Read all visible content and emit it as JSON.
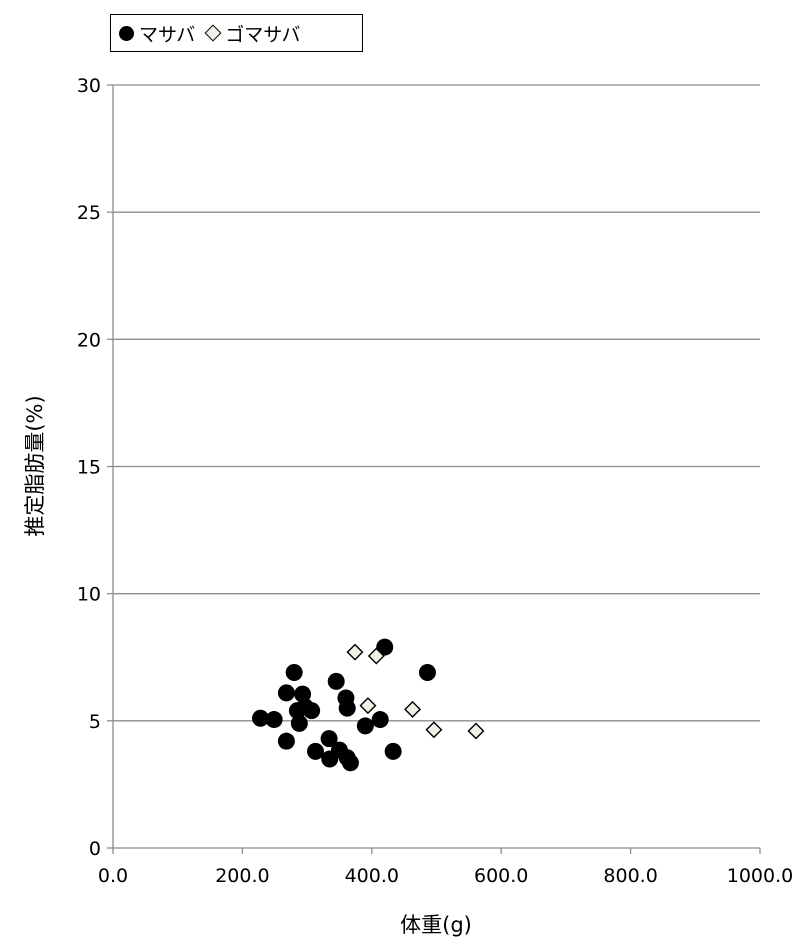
{
  "chart_data": {
    "type": "scatter",
    "title": "",
    "xlabel": "体重(g)",
    "ylabel": "推定脂肪量(%)",
    "xlim": [
      0,
      1000
    ],
    "ylim": [
      0,
      30
    ],
    "x_ticks": [
      "0.0",
      "200.0",
      "400.0",
      "600.0",
      "800.0",
      "1000.0"
    ],
    "x_tick_values": [
      0,
      200,
      400,
      600,
      800,
      1000
    ],
    "y_ticks": [
      "0",
      "5",
      "10",
      "15",
      "20",
      "25",
      "30"
    ],
    "y_tick_values": [
      0,
      5,
      10,
      15,
      20,
      25,
      30
    ],
    "grid": "horizontal",
    "legend_position": "top-left",
    "series": [
      {
        "name": "マサバ",
        "marker": "circle",
        "color": "#000000",
        "points": [
          [
            228,
            5.1
          ],
          [
            249,
            5.05
          ],
          [
            268,
            6.1
          ],
          [
            268,
            4.2
          ],
          [
            280,
            6.9
          ],
          [
            285,
            5.4
          ],
          [
            288,
            4.9
          ],
          [
            293,
            6.05
          ],
          [
            297,
            5.55
          ],
          [
            307,
            5.4
          ],
          [
            313,
            3.8
          ],
          [
            334,
            4.3
          ],
          [
            335,
            3.5
          ],
          [
            345,
            6.55
          ],
          [
            350,
            3.85
          ],
          [
            360,
            5.9
          ],
          [
            362,
            5.5
          ],
          [
            362,
            3.55
          ],
          [
            367,
            3.35
          ],
          [
            390,
            4.8
          ],
          [
            413,
            5.05
          ],
          [
            420,
            7.9
          ],
          [
            433,
            3.8
          ],
          [
            486,
            6.9
          ]
        ]
      },
      {
        "name": "ゴマサバ",
        "marker": "diamond",
        "color": "#f0f0e6",
        "points": [
          [
            374,
            7.7
          ],
          [
            394,
            5.6
          ],
          [
            407,
            7.55
          ],
          [
            463,
            5.45
          ],
          [
            496,
            4.65
          ],
          [
            561,
            4.6
          ]
        ]
      }
    ]
  }
}
